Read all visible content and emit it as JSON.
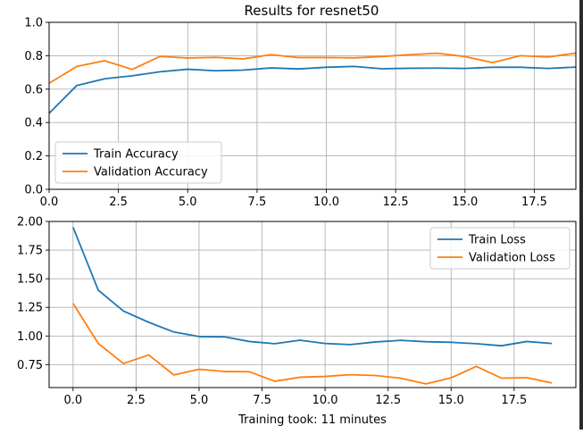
{
  "figure": {
    "title": "Results for resnet50",
    "xlabel": "Training took: 11 minutes"
  },
  "colors": {
    "train": "#1f77b4",
    "validation": "#ff7f0e",
    "grid": "#b0b0b0"
  },
  "chart_data": [
    {
      "type": "line",
      "title": "Results for resnet50",
      "grid": true,
      "legend_position": "lower-left",
      "xlim": [
        0,
        19
      ],
      "ylim": [
        0,
        1.0
      ],
      "x_ticks": [
        "0.0",
        "2.5",
        "5.0",
        "7.5",
        "10.0",
        "12.5",
        "15.0",
        "17.5"
      ],
      "y_ticks": [
        "0.0",
        "0.2",
        "0.4",
        "0.6",
        "0.8",
        "1.0"
      ],
      "x": [
        0,
        1,
        2,
        3,
        4,
        5,
        6,
        7,
        8,
        9,
        10,
        11,
        12,
        13,
        14,
        15,
        16,
        17,
        18,
        19
      ],
      "series": [
        {
          "name": "Train Accuracy",
          "color": "#1f77b4",
          "values": [
            0.455,
            0.622,
            0.662,
            0.68,
            0.704,
            0.719,
            0.71,
            0.714,
            0.727,
            0.721,
            0.731,
            0.736,
            0.722,
            0.725,
            0.726,
            0.724,
            0.731,
            0.731,
            0.724,
            0.732
          ]
        },
        {
          "name": "Validation Accuracy",
          "color": "#ff7f0e",
          "values": [
            0.635,
            0.736,
            0.77,
            0.718,
            0.796,
            0.786,
            0.79,
            0.781,
            0.806,
            0.789,
            0.789,
            0.787,
            0.795,
            0.806,
            0.815,
            0.795,
            0.759,
            0.8,
            0.792,
            0.816
          ]
        }
      ]
    },
    {
      "type": "line",
      "title": "",
      "xlabel": "Training took: 11 minutes",
      "grid": true,
      "legend_position": "upper-right",
      "xlim": [
        -0.95,
        19.95
      ],
      "ylim": [
        0.55,
        2.0
      ],
      "x_ticks": [
        "0.0",
        "2.5",
        "5.0",
        "7.5",
        "10.0",
        "12.5",
        "15.0",
        "17.5"
      ],
      "y_ticks": [
        "0.75",
        "1.00",
        "1.25",
        "1.50",
        "1.75",
        "2.00"
      ],
      "x": [
        0,
        1,
        2,
        3,
        4,
        5,
        6,
        7,
        8,
        9,
        10,
        11,
        12,
        13,
        14,
        15,
        16,
        17,
        18,
        19
      ],
      "series": [
        {
          "name": "Train Loss",
          "color": "#1f77b4",
          "values": [
            1.95,
            1.4,
            1.218,
            1.12,
            1.035,
            0.995,
            0.993,
            0.952,
            0.933,
            0.963,
            0.935,
            0.925,
            0.948,
            0.962,
            0.95,
            0.945,
            0.933,
            0.915,
            0.952,
            0.935
          ]
        },
        {
          "name": "Validation Loss",
          "color": "#ff7f0e",
          "values": [
            1.285,
            0.935,
            0.76,
            0.835,
            0.66,
            0.71,
            0.69,
            0.688,
            0.605,
            0.64,
            0.647,
            0.662,
            0.655,
            0.632,
            0.582,
            0.635,
            0.735,
            0.632,
            0.637,
            0.59
          ]
        }
      ]
    }
  ]
}
